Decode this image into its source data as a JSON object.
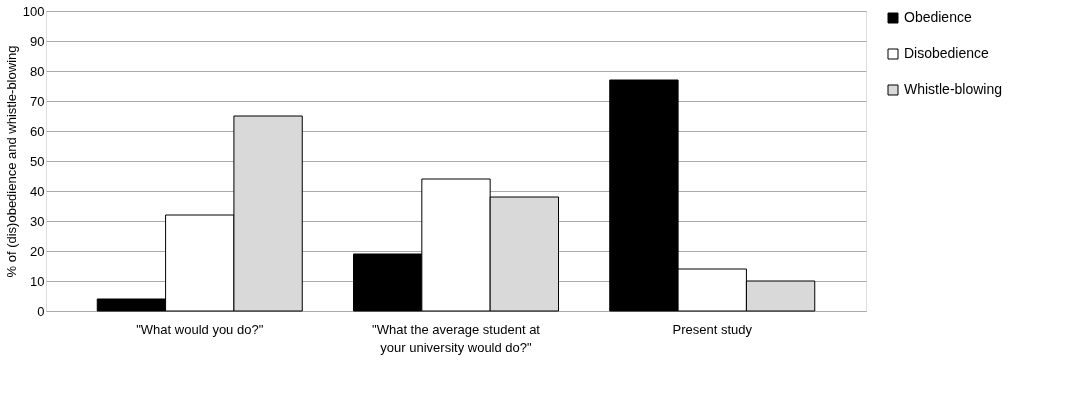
{
  "chart_data": {
    "type": "bar",
    "ylabel": "% of (dis)obedience and whistle-blowing",
    "categories": [
      "\"What would you do?\"",
      "\"What the average student at your university would do?\"",
      "Present study"
    ],
    "series": [
      {
        "name": "Obedience",
        "color": "#000000",
        "values": [
          4,
          19,
          77
        ]
      },
      {
        "name": "Disobedience",
        "color": "#ffffff",
        "values": [
          32,
          44,
          14
        ]
      },
      {
        "name": "Whistle-blowing",
        "color": "#d9d9d9",
        "values": [
          65,
          38,
          10
        ]
      }
    ],
    "ylim": [
      0,
      100
    ],
    "yticks": [
      0,
      10,
      20,
      30,
      40,
      50,
      60,
      70,
      80,
      90,
      100
    ],
    "grid": "y",
    "legend": "right"
  }
}
